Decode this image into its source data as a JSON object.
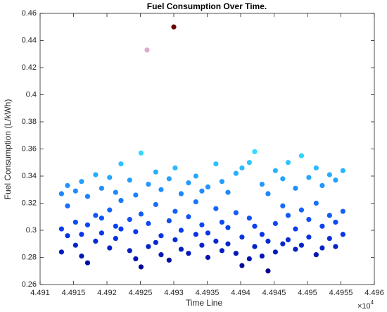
{
  "chart_data": {
    "type": "scatter",
    "title": "Fuel Consumption Over Time.",
    "x_label": "Time Line",
    "y_label": "Fuel Consumption (L/kWh)",
    "x_multiplier": {
      "base": "×10",
      "exponent": "4"
    },
    "xlim": [
      4.491,
      4.496
    ],
    "xticks": [
      4.491,
      4.4915,
      4.492,
      4.4925,
      4.493,
      4.4935,
      4.494,
      4.4945,
      4.495,
      4.4955,
      4.496
    ],
    "ylim": [
      0.26,
      0.46
    ],
    "yticks": [
      0.26,
      0.28,
      0.3,
      0.32,
      0.34,
      0.36,
      0.38,
      0.4,
      0.42,
      0.44,
      0.46
    ],
    "colormap": [
      "#00008f",
      "#0a3cf0",
      "#1f8cff",
      "#33e0ff",
      "#7fd87f",
      "#ffd8ff",
      "#6b0000"
    ],
    "x": [
      4.49132,
      4.49132,
      4.49132,
      4.49141,
      4.49141,
      4.49141,
      4.49153,
      4.49153,
      4.49153,
      4.49162,
      4.49162,
      4.49162,
      4.49171,
      4.49171,
      4.49171,
      4.49183,
      4.49183,
      4.49183,
      4.49192,
      4.49192,
      4.49192,
      4.49204,
      4.49204,
      4.49204,
      4.49213,
      4.49213,
      4.49213,
      4.49221,
      4.49221,
      4.49221,
      4.49234,
      4.49234,
      4.49234,
      4.49243,
      4.49243,
      4.49243,
      4.49251,
      4.49251,
      4.49251,
      4.49262,
      4.49262,
      4.49262,
      4.49273,
      4.49273,
      4.49273,
      4.49281,
      4.49281,
      4.49281,
      4.49293,
      4.49293,
      4.49293,
      4.49302,
      4.49302,
      4.49302,
      4.49311,
      4.49311,
      4.49311,
      4.49322,
      4.49322,
      4.49322,
      4.49333,
      4.49333,
      4.49333,
      4.49342,
      4.49342,
      4.49342,
      4.49351,
      4.49351,
      4.49351,
      4.49363,
      4.49363,
      4.49363,
      4.49372,
      4.49372,
      4.49372,
      4.49381,
      4.49381,
      4.49381,
      4.49393,
      4.49393,
      4.49393,
      4.49402,
      4.49402,
      4.49402,
      4.49413,
      4.49413,
      4.49413,
      4.49421,
      4.49421,
      4.49421,
      4.49432,
      4.49432,
      4.49432,
      4.49441,
      4.49441,
      4.49441,
      4.49452,
      4.49452,
      4.49452,
      4.49463,
      4.49463,
      4.49463,
      4.49471,
      4.49471,
      4.49471,
      4.49482,
      4.49482,
      4.49482,
      4.49491,
      4.49491,
      4.49491,
      4.49502,
      4.49502,
      4.49502,
      4.49513,
      4.49513,
      4.49513,
      4.49522,
      4.49522,
      4.49522,
      4.49533,
      4.49533,
      4.49533,
      4.49542,
      4.49542,
      4.49542,
      4.49553,
      4.49553,
      4.49553,
      4.4926,
      4.493
    ],
    "y": [
      0.284,
      0.301,
      0.327,
      0.296,
      0.318,
      0.333,
      0.289,
      0.306,
      0.329,
      0.281,
      0.297,
      0.336,
      0.276,
      0.304,
      0.325,
      0.292,
      0.311,
      0.341,
      0.298,
      0.309,
      0.331,
      0.287,
      0.315,
      0.339,
      0.294,
      0.303,
      0.328,
      0.301,
      0.322,
      0.349,
      0.285,
      0.308,
      0.337,
      0.279,
      0.299,
      0.326,
      0.273,
      0.312,
      0.357,
      0.288,
      0.305,
      0.334,
      0.291,
      0.319,
      0.343,
      0.282,
      0.296,
      0.33,
      0.278,
      0.307,
      0.338,
      0.293,
      0.314,
      0.346,
      0.286,
      0.3,
      0.327,
      0.283,
      0.31,
      0.335,
      0.297,
      0.321,
      0.34,
      0.289,
      0.304,
      0.329,
      0.28,
      0.298,
      0.332,
      0.292,
      0.316,
      0.349,
      0.285,
      0.306,
      0.336,
      0.29,
      0.302,
      0.328,
      0.283,
      0.313,
      0.342,
      0.274,
      0.295,
      0.346,
      0.279,
      0.309,
      0.35,
      0.288,
      0.303,
      0.358,
      0.281,
      0.297,
      0.334,
      0.27,
      0.292,
      0.327,
      0.284,
      0.305,
      0.344,
      0.29,
      0.318,
      0.338,
      0.293,
      0.311,
      0.35,
      0.286,
      0.301,
      0.331,
      0.289,
      0.315,
      0.355,
      0.295,
      0.308,
      0.339,
      0.282,
      0.32,
      0.346,
      0.287,
      0.303,
      0.333,
      0.294,
      0.311,
      0.341,
      0.288,
      0.306,
      0.337,
      0.297,
      0.314,
      0.344,
      0.433,
      0.45
    ]
  }
}
